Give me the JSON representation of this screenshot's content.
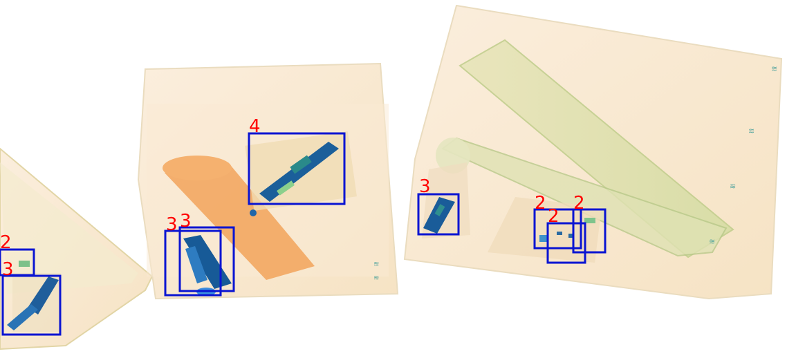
{
  "image": {
    "kind": "x-ray baggage scan with detection boxes",
    "box_color": "#0a14d2",
    "label_color": "#ff0000"
  },
  "detections": [
    {
      "label": "2"
    },
    {
      "label": "3"
    },
    {
      "label": "3"
    },
    {
      "label": "3"
    },
    {
      "label": "4"
    },
    {
      "label": "3"
    },
    {
      "label": "2"
    },
    {
      "label": "2"
    },
    {
      "label": "2"
    }
  ]
}
